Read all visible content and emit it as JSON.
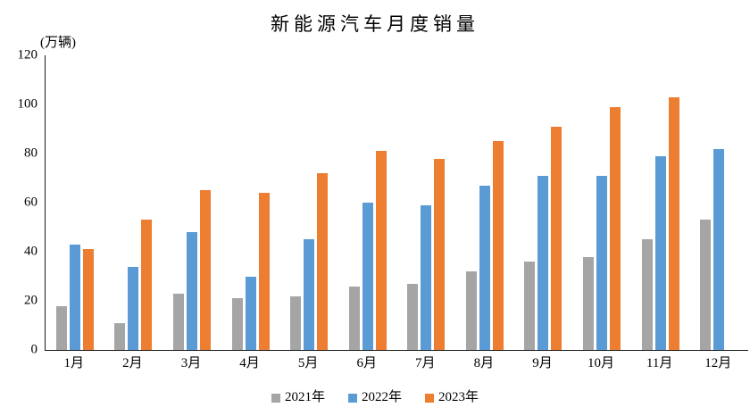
{
  "chart": {
    "title": "新能源汽车月度销量",
    "unit_label": "(万辆)"
  },
  "chart_data": {
    "type": "bar",
    "title": "新能源汽车月度销量",
    "ylabel": "(万辆)",
    "categories": [
      "1月",
      "2月",
      "3月",
      "4月",
      "5月",
      "6月",
      "7月",
      "8月",
      "9月",
      "10月",
      "11月",
      "12月"
    ],
    "series": [
      {
        "name": "2021年",
        "color": "#A5A5A5",
        "values": [
          18,
          11,
          23,
          21,
          22,
          26,
          27,
          32,
          36,
          38,
          45,
          53
        ]
      },
      {
        "name": "2022年",
        "color": "#5B9BD5",
        "values": [
          43,
          34,
          48,
          30,
          45,
          60,
          59,
          67,
          71,
          71,
          79,
          82
        ]
      },
      {
        "name": "2023年",
        "color": "#ED7D31",
        "values": [
          41,
          53,
          65,
          64,
          72,
          81,
          78,
          85,
          91,
          99,
          103,
          null
        ]
      }
    ],
    "ylim": [
      0,
      120
    ],
    "yticks": [
      0,
      20,
      40,
      60,
      80,
      100,
      120
    ],
    "grid": false,
    "legend_position": "bottom",
    "axis_color": "#1a1a1a",
    "text_color": "#000000",
    "background_color": "#ffffff"
  }
}
